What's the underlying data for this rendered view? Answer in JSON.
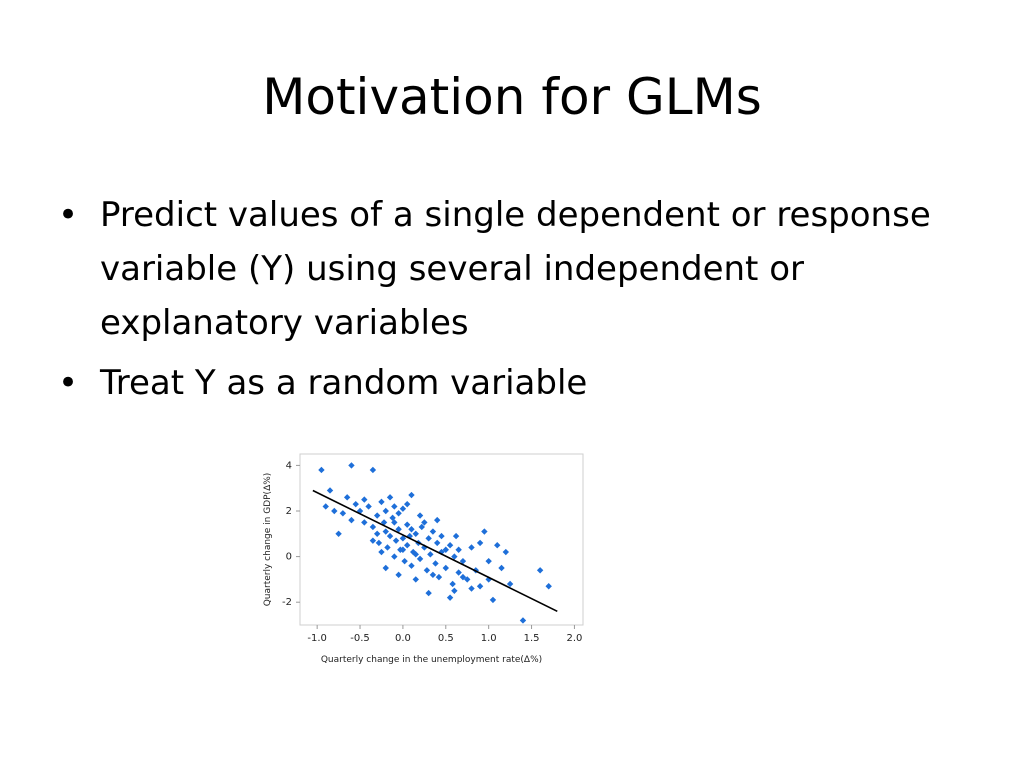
{
  "slide": {
    "title": "Motivation for GLMs",
    "bullets": [
      "Predict values of a single dependent or response variable (Y) using several independent or explanatory variables",
      "Treat Y as a random variable"
    ],
    "bullet_glyph": "•"
  },
  "chart_data": {
    "type": "scatter",
    "title": "",
    "xlabel": "Quarterly change in the unemployment rate(Δ%)",
    "ylabel": "Quarterly change in GDP(Δ%)",
    "xlim": [
      -1.2,
      2.1
    ],
    "ylim": [
      -3.0,
      4.5
    ],
    "xticks": [
      -1.0,
      -0.5,
      0.0,
      0.5,
      1.0,
      1.5,
      2.0
    ],
    "xtick_labels": [
      "-1.0",
      "-0.5",
      "0.0",
      "0.5",
      "1.0",
      "1.5",
      "2.0"
    ],
    "yticks": [
      -2,
      0,
      2,
      4
    ],
    "ytick_labels": [
      "-2",
      "0",
      "2",
      "4"
    ],
    "grid": false,
    "point_color": "#1e6fd9",
    "line_color": "#000000",
    "trend_line": [
      [
        -1.05,
        2.9
      ],
      [
        1.8,
        -2.4
      ]
    ],
    "points": [
      [
        -0.95,
        3.8
      ],
      [
        -0.6,
        4.0
      ],
      [
        -0.35,
        3.8
      ],
      [
        -0.85,
        2.9
      ],
      [
        -0.9,
        2.2
      ],
      [
        -0.8,
        2.0
      ],
      [
        -0.65,
        2.6
      ],
      [
        -0.55,
        2.3
      ],
      [
        -0.45,
        2.5
      ],
      [
        -0.7,
        1.9
      ],
      [
        -0.75,
        1.0
      ],
      [
        -0.6,
        1.6
      ],
      [
        -0.5,
        2.0
      ],
      [
        -0.4,
        2.2
      ],
      [
        -0.3,
        1.8
      ],
      [
        -0.25,
        2.4
      ],
      [
        -0.2,
        2.0
      ],
      [
        -0.15,
        2.6
      ],
      [
        -0.1,
        2.2
      ],
      [
        -0.05,
        1.9
      ],
      [
        0.0,
        2.1
      ],
      [
        0.1,
        2.7
      ],
      [
        -0.35,
        1.3
      ],
      [
        -0.3,
        1.0
      ],
      [
        -0.28,
        0.6
      ],
      [
        -0.22,
        1.5
      ],
      [
        -0.2,
        1.1
      ],
      [
        -0.18,
        0.4
      ],
      [
        -0.15,
        0.9
      ],
      [
        -0.12,
        1.7
      ],
      [
        -0.1,
        0.0
      ],
      [
        -0.08,
        0.7
      ],
      [
        -0.05,
        1.2
      ],
      [
        -0.03,
        0.3
      ],
      [
        0.0,
        0.8
      ],
      [
        0.02,
        -0.2
      ],
      [
        0.05,
        1.4
      ],
      [
        0.05,
        0.5
      ],
      [
        0.08,
        0.9
      ],
      [
        0.1,
        -0.4
      ],
      [
        0.12,
        0.2
      ],
      [
        0.15,
        1.0
      ],
      [
        0.18,
        0.6
      ],
      [
        0.2,
        -0.1
      ],
      [
        0.22,
        1.3
      ],
      [
        0.25,
        0.4
      ],
      [
        0.28,
        -0.6
      ],
      [
        0.3,
        0.8
      ],
      [
        0.32,
        0.1
      ],
      [
        0.35,
        1.1
      ],
      [
        0.38,
        -0.3
      ],
      [
        0.4,
        0.6
      ],
      [
        0.42,
        -0.9
      ],
      [
        0.45,
        0.2
      ],
      [
        0.5,
        -0.5
      ],
      [
        0.55,
        0.5
      ],
      [
        0.58,
        -1.2
      ],
      [
        0.6,
        0.0
      ],
      [
        0.62,
        0.9
      ],
      [
        0.65,
        -0.7
      ],
      [
        0.7,
        -0.2
      ],
      [
        0.75,
        -1.0
      ],
      [
        0.8,
        0.4
      ],
      [
        0.85,
        -0.6
      ],
      [
        0.9,
        -1.3
      ],
      [
        0.95,
        1.1
      ],
      [
        1.0,
        -1.0
      ],
      [
        1.05,
        -1.9
      ],
      [
        1.1,
        0.5
      ],
      [
        1.15,
        -0.5
      ],
      [
        1.25,
        -1.2
      ],
      [
        1.0,
        -0.2
      ],
      [
        -0.2,
        -0.5
      ],
      [
        -0.05,
        -0.8
      ],
      [
        0.15,
        -1.0
      ],
      [
        0.3,
        -1.6
      ],
      [
        0.55,
        -1.8
      ],
      [
        0.7,
        -0.9
      ],
      [
        0.4,
        1.6
      ],
      [
        0.2,
        1.8
      ],
      [
        -0.45,
        1.5
      ],
      [
        -0.35,
        0.7
      ],
      [
        0.05,
        2.3
      ],
      [
        0.25,
        1.5
      ],
      [
        0.45,
        0.9
      ],
      [
        0.6,
        -1.5
      ],
      [
        0.8,
        -1.4
      ],
      [
        1.4,
        -2.8
      ],
      [
        1.6,
        -0.6
      ],
      [
        1.7,
        -1.3
      ],
      [
        -0.1,
        1.5
      ],
      [
        0.0,
        0.3
      ],
      [
        0.1,
        1.2
      ],
      [
        0.35,
        -0.8
      ],
      [
        0.5,
        0.3
      ],
      [
        -0.25,
        0.2
      ],
      [
        0.15,
        0.1
      ],
      [
        0.9,
        0.6
      ],
      [
        1.2,
        0.2
      ],
      [
        0.65,
        0.3
      ]
    ]
  }
}
